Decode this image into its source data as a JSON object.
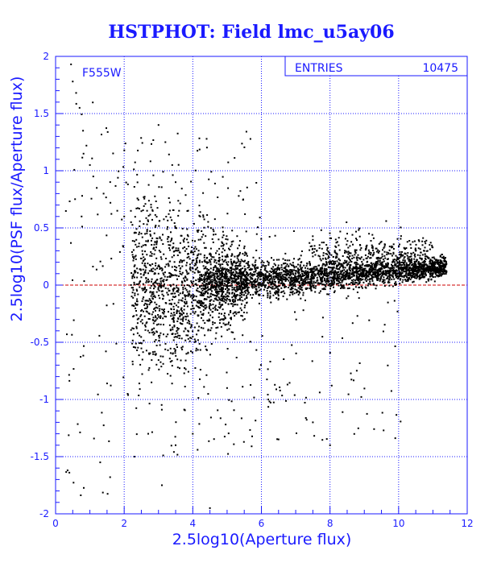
{
  "colors": {
    "background": "#ffffff",
    "axis_and_text": "#1a1aff",
    "grid": "#1a1aff",
    "points": "#000000",
    "reference_line": "#cc0000"
  },
  "chart_data": {
    "type": "scatter",
    "title": "HSTPHOT: Field lmc_u5ay06",
    "filter_label": "F555W",
    "xlabel": "2.5log10(Aperture flux)",
    "ylabel": "2.5log10(PSF flux/Aperture flux)",
    "xlim": [
      0,
      12
    ],
    "ylim": [
      -2,
      2
    ],
    "x_ticks": [
      0,
      2,
      4,
      6,
      8,
      10,
      12
    ],
    "y_ticks": [
      -2,
      -1.5,
      -1,
      -0.5,
      0,
      0.5,
      1,
      1.5,
      2
    ],
    "x_tick_labels": [
      "0",
      "2",
      "4",
      "6",
      "8",
      "10",
      "12"
    ],
    "y_tick_labels": [
      "-2",
      "-1.5",
      "-1",
      "-0.5",
      "0",
      "0.5",
      "1",
      "1.5",
      "2"
    ],
    "grid": true,
    "reference_line_y": 0,
    "stats": {
      "label": "ENTRIES",
      "value": "10475"
    },
    "series": [
      {
        "distribution": "dense ridge: y rises from about 0.0 at x=4 to about 0.15 at x=11.3, wide scatter at faint end",
        "sample_points": [
          [
            0.45,
            1.93
          ],
          [
            0.5,
            1.78
          ],
          [
            0.6,
            1.68
          ],
          [
            0.7,
            1.55
          ],
          [
            0.8,
            1.35
          ],
          [
            0.9,
            1.22
          ],
          [
            1.0,
            1.05
          ],
          [
            1.1,
            0.95
          ],
          [
            1.2,
            0.85
          ],
          [
            1.4,
            0.8
          ],
          [
            1.6,
            0.72
          ],
          [
            1.8,
            0.65
          ],
          [
            2.0,
            0.6
          ],
          [
            2.2,
            0.55
          ],
          [
            2.5,
            0.45
          ],
          [
            3.0,
            1.4
          ],
          [
            3.2,
            1.25
          ],
          [
            3.4,
            1.05
          ],
          [
            3.5,
            0.9
          ],
          [
            3.0,
            0.1
          ],
          [
            3.5,
            -0.1
          ],
          [
            3.8,
            -0.3
          ],
          [
            4.0,
            -0.45
          ],
          [
            4.2,
            0.2
          ],
          [
            4.5,
            0.05
          ],
          [
            5.0,
            0.0
          ],
          [
            5.5,
            0.05
          ],
          [
            6.0,
            0.08
          ],
          [
            6.5,
            0.1
          ],
          [
            7.0,
            0.1
          ],
          [
            7.5,
            0.11
          ],
          [
            8.0,
            0.12
          ],
          [
            8.5,
            0.13
          ],
          [
            9.0,
            0.13
          ],
          [
            9.5,
            0.14
          ],
          [
            10.0,
            0.14
          ],
          [
            10.5,
            0.15
          ],
          [
            11.0,
            0.15
          ],
          [
            11.3,
            0.16
          ],
          [
            8.5,
            0.45
          ],
          [
            9.5,
            0.38
          ],
          [
            10.5,
            0.3
          ],
          [
            4.0,
            -1.3
          ],
          [
            3.5,
            -1.4
          ],
          [
            5.0,
            -0.9
          ],
          [
            6.2,
            -1.0
          ],
          [
            7.5,
            -1.2
          ],
          [
            8.0,
            -1.4
          ],
          [
            2.7,
            -1.3
          ],
          [
            2.3,
            -1.5
          ],
          [
            1.3,
            -1.55
          ],
          [
            0.35,
            -1.62
          ],
          [
            3.1,
            -1.75
          ],
          [
            4.5,
            -1.95
          ]
        ]
      }
    ]
  }
}
